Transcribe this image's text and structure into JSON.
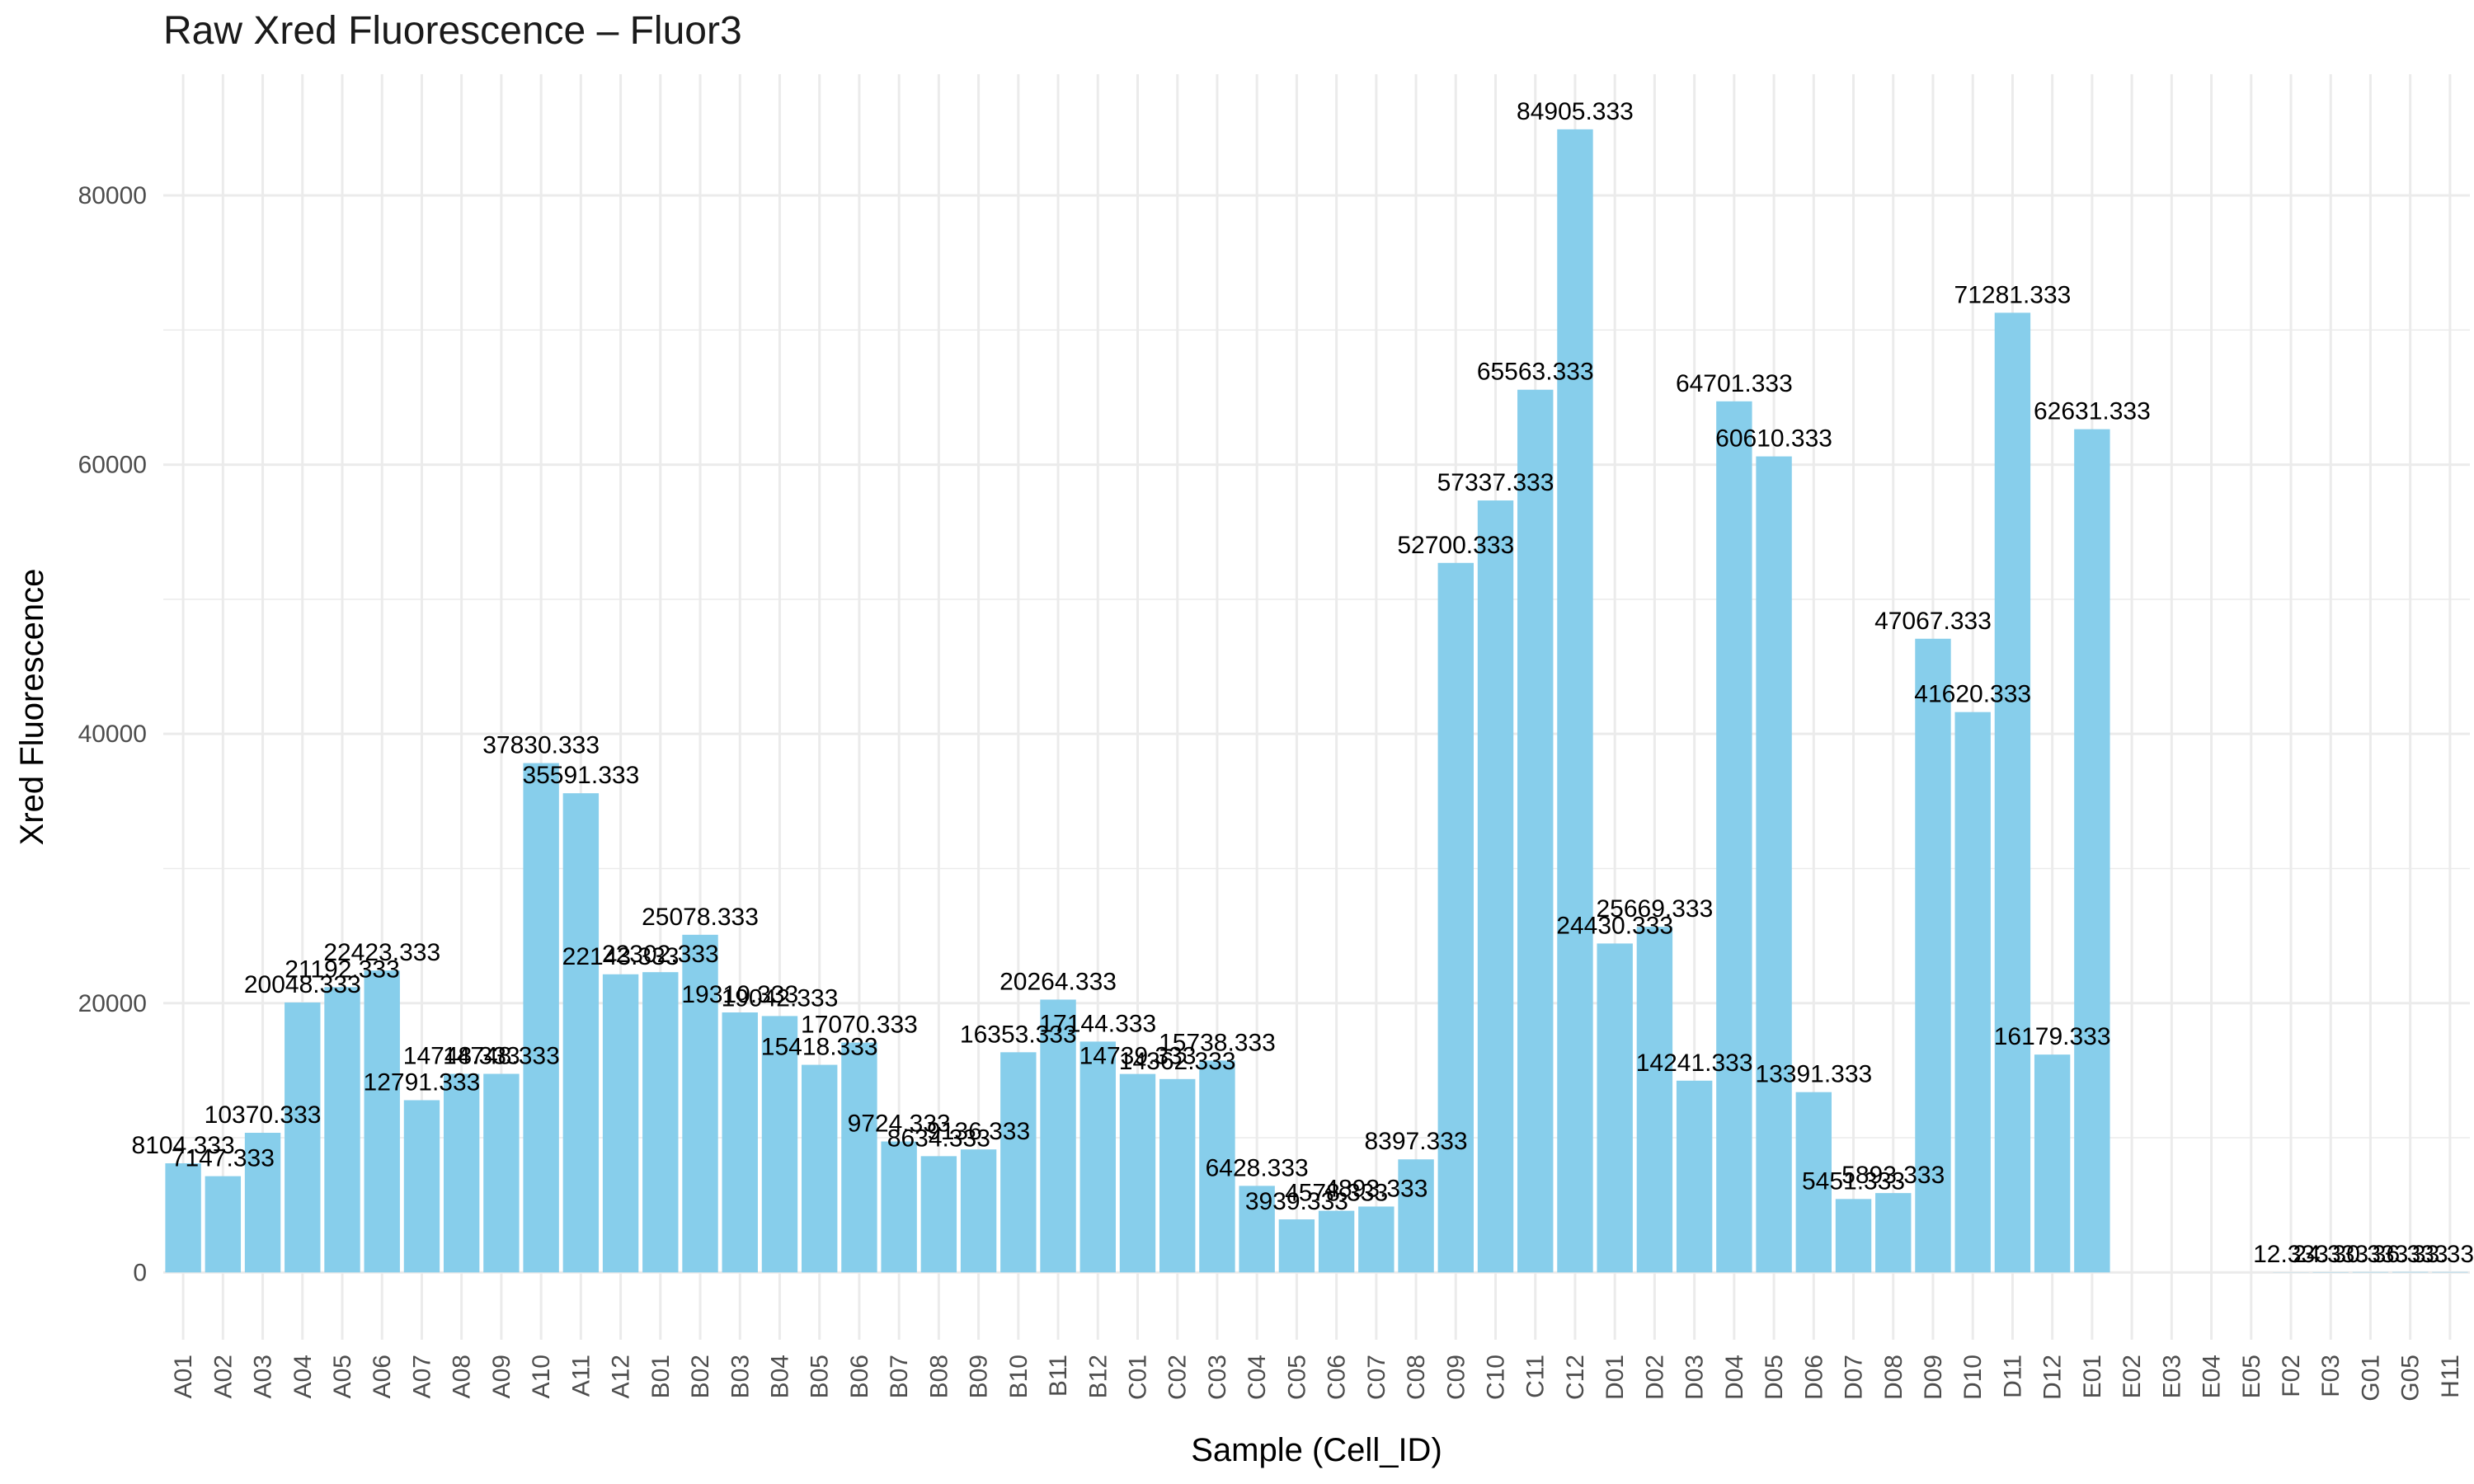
{
  "chart_data": {
    "type": "bar",
    "title": "Raw Xred Fluorescence – Fluor3",
    "xlabel": "Sample (Cell_ID)",
    "ylabel": "Xred Fluorescence",
    "ylim": [
      -5000,
      89000
    ],
    "yticks": [
      0,
      20000,
      40000,
      60000,
      80000
    ],
    "grid": true,
    "legend": "none",
    "colors": {
      "bar": "#87CEEB",
      "grid": "#ebebeb",
      "tick_text": "#4d4d4d",
      "label_text": "#000000"
    },
    "categories": [
      "A01",
      "A02",
      "A03",
      "A04",
      "A05",
      "A06",
      "A07",
      "A08",
      "A09",
      "A10",
      "A11",
      "A12",
      "B01",
      "B02",
      "B03",
      "B04",
      "B05",
      "B06",
      "B07",
      "B08",
      "B09",
      "B10",
      "B11",
      "B12",
      "C01",
      "C02",
      "C03",
      "C04",
      "C05",
      "C06",
      "C07",
      "C08",
      "C09",
      "C10",
      "C11",
      "C12",
      "D01",
      "D02",
      "D03",
      "D04",
      "D05",
      "D06",
      "D07",
      "D08",
      "D09",
      "D10",
      "D11",
      "D12",
      "E01",
      "E02",
      "E03",
      "E04",
      "E05",
      "F02",
      "F03",
      "G01",
      "G05",
      "H11"
    ],
    "values": [
      8104.333,
      7147.333,
      10370.333,
      20048.333,
      21192.333,
      22423.333,
      12791.333,
      14748.333,
      14748.333,
      37830.333,
      35591.333,
      22143.333,
      22302.333,
      25078.333,
      19310.333,
      19042.333,
      15418.333,
      17070.333,
      9724.333,
      8634.333,
      9136.333,
      16353.333,
      20264.333,
      17144.333,
      14739.333,
      14362.333,
      15738.333,
      6428.333,
      3939.333,
      4578.333,
      4893.333,
      8397.333,
      52700.333,
      57337.333,
      65563.333,
      84905.333,
      24430.333,
      25669.333,
      14241.333,
      64701.333,
      60610.333,
      13391.333,
      5451.333,
      5893.333,
      47067.333,
      41620.333,
      71281.333,
      16179.333,
      62631.333,
      0,
      0,
      0,
      0,
      12.333,
      24.333,
      30.333,
      36.333,
      33.333
    ],
    "data_labels": [
      "8104.333",
      "7147.333",
      "10370.333",
      "20048.333",
      "21192.333",
      "22423.333",
      "12791.333",
      "14748.333",
      "14748.333",
      "37830.333",
      "35591.333",
      "22143.333",
      "22302.333",
      "25078.333",
      "19310.333",
      "19042.333",
      "15418.333",
      "17070.333",
      "9724.333",
      "8634.333",
      "9136.333",
      "16353.333",
      "20264.333",
      "17144.333",
      "14739.333",
      "14362.333",
      "15738.333",
      "6428.333",
      "3939.333",
      "4578.333",
      "4893.333",
      "8397.333",
      "52700.333",
      "57337.333",
      "65563.333",
      "84905.333",
      "24430.333",
      "25669.333",
      "14241.333",
      "64701.333",
      "60610.333",
      "13391.333",
      "5451.333",
      "5893.333",
      "47067.333",
      "41620.333",
      "71281.333",
      "16179.333",
      "62631.333",
      "",
      "",
      "",
      "",
      "12.333",
      "24.333",
      "30.333",
      "36.333",
      "33.333"
    ]
  }
}
